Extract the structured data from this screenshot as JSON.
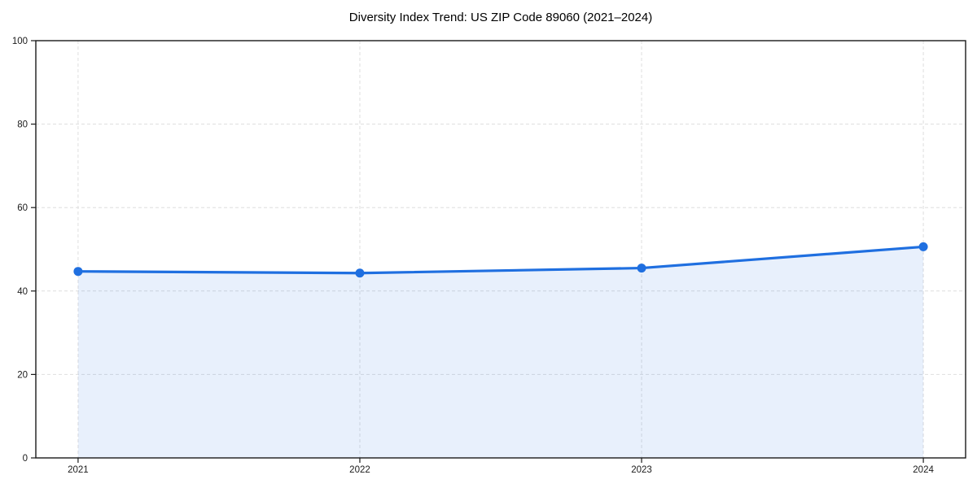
{
  "figure": {
    "background": "#ffffff"
  },
  "chart_data": {
    "type": "line",
    "title": "Diversity Index Trend: US ZIP Code 89060 (2021–2024)",
    "x": [
      2021,
      2022,
      2023,
      2024
    ],
    "x_labels": [
      "2021",
      "2022",
      "2023",
      "2024"
    ],
    "series": [
      {
        "name": "Diversity Index",
        "values": [
          44.7,
          44.3,
          45.5,
          50.6
        ]
      }
    ],
    "yticks": [
      0,
      20,
      40,
      60,
      80,
      100
    ],
    "ytick_labels": [
      "0",
      "20",
      "40",
      "60",
      "80",
      "100"
    ],
    "xlim": [
      2020.85,
      2024.15
    ],
    "ylim": [
      0,
      100
    ],
    "grid": true,
    "grid_style": "dashed",
    "legend_position": "none",
    "fill_to_zero": true,
    "marker": "circle",
    "line_color": "#1f6fe0",
    "marker_color": "#1f6fe0",
    "fill_color": "rgba(31, 111, 224, 0.10)",
    "grid_color": "#dedede",
    "axis_color": "#1a1a1a",
    "tick_label_color": "#1a1a1a"
  }
}
